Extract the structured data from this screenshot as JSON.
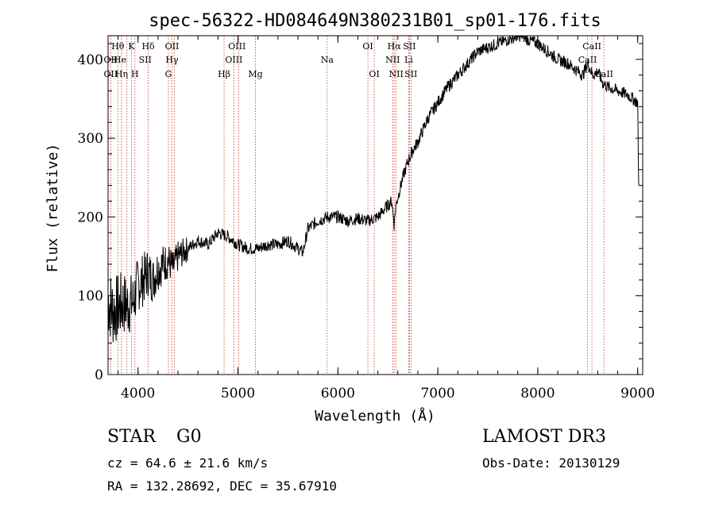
{
  "chart_data": {
    "type": "line",
    "title": "spec-56322-HD084649N380231B01_sp01-176.fits",
    "xlabel": "Wavelength (Å)",
    "ylabel": "Flux (relative)",
    "xlim": [
      3700,
      9050
    ],
    "ylim": [
      0,
      430
    ],
    "xticks": [
      4000,
      5000,
      6000,
      7000,
      8000,
      9000
    ],
    "yticks": [
      0,
      100,
      200,
      300,
      400
    ],
    "series": [
      {
        "name": "flux",
        "x": [
          3700,
          3750,
          3800,
          3850,
          3900,
          3950,
          4000,
          4050,
          4100,
          4150,
          4200,
          4250,
          4300,
          4350,
          4400,
          4450,
          4500,
          4600,
          4700,
          4800,
          4900,
          5000,
          5100,
          5200,
          5300,
          5400,
          5500,
          5600,
          5650,
          5700,
          5800,
          5900,
          6000,
          6100,
          6200,
          6300,
          6400,
          6500,
          6540,
          6563,
          6580,
          6600,
          6650,
          6700,
          6750,
          6800,
          6900,
          7000,
          7100,
          7200,
          7300,
          7400,
          7500,
          7600,
          7700,
          7800,
          7850,
          7900,
          8000,
          8100,
          8200,
          8300,
          8400,
          8450,
          8500,
          8550,
          8600,
          8650,
          8700,
          8800,
          8900,
          9000,
          9010
        ],
        "y": [
          95,
          80,
          85,
          90,
          88,
          92,
          115,
          120,
          130,
          120,
          135,
          140,
          145,
          135,
          150,
          155,
          160,
          170,
          165,
          180,
          175,
          165,
          160,
          160,
          165,
          165,
          170,
          160,
          155,
          185,
          195,
          200,
          200,
          195,
          198,
          195,
          200,
          215,
          220,
          190,
          215,
          225,
          250,
          270,
          285,
          295,
          325,
          345,
          365,
          380,
          395,
          410,
          415,
          420,
          425,
          430,
          430,
          425,
          420,
          410,
          400,
          395,
          385,
          380,
          395,
          380,
          385,
          370,
          365,
          360,
          355,
          345,
          240
        ]
      }
    ],
    "line_markers": {
      "row1": [
        {
          "label": "Hθ",
          "x": 3798
        },
        {
          "label": "K",
          "x": 3934
        },
        {
          "label": "Hδ",
          "x": 4102
        },
        {
          "label": "OII",
          "x": 4340
        },
        {
          "label": "OIII",
          "x": 4990
        },
        {
          "label": "OI",
          "x": 6300
        },
        {
          "label": "Hα",
          "x": 6563
        },
        {
          "label": "SII",
          "x": 6716
        },
        {
          "label": "CaII",
          "x": 8542
        }
      ],
      "row2": [
        {
          "label": "OII",
          "x": 3727
        },
        {
          "label": "He",
          "x": 3820
        },
        {
          "label": "SII",
          "x": 4072
        },
        {
          "label": "Hγ",
          "x": 4340
        },
        {
          "label": "OIII",
          "x": 4959
        },
        {
          "label": "Na",
          "x": 5893
        },
        {
          "label": "NII",
          "x": 6548
        },
        {
          "label": "Li",
          "x": 6708
        },
        {
          "label": "CaII",
          "x": 8498
        }
      ],
      "row3": [
        {
          "label": "OII",
          "x": 3727
        },
        {
          "label": "Hη",
          "x": 3835
        },
        {
          "label": "H",
          "x": 3969
        },
        {
          "label": "G",
          "x": 4304
        },
        {
          "label": "Hβ",
          "x": 4861
        },
        {
          "label": "Mg",
          "x": 5175
        },
        {
          "label": "OI",
          "x": 6364
        },
        {
          "label": "NII",
          "x": 6583
        },
        {
          "label": "SII",
          "x": 6731
        },
        {
          "label": "CaII",
          "x": 8662
        }
      ],
      "line_positions": [
        3727,
        3798,
        3835,
        3889,
        3934,
        3969,
        4102,
        4304,
        4340,
        4363,
        4861,
        4959,
        5007,
        5175,
        5893,
        6300,
        6364,
        6548,
        6563,
        6583,
        6708,
        6716,
        6731,
        8498,
        8542,
        8662
      ]
    }
  },
  "footer": {
    "class": "STAR",
    "subclass": "G0",
    "survey": "LAMOST DR3",
    "cz": "cz = 64.6 ± 21.6 km/s",
    "obs_date": "Obs-Date: 20130129",
    "radec": "RA = 132.28692, DEC =  35.67910"
  }
}
